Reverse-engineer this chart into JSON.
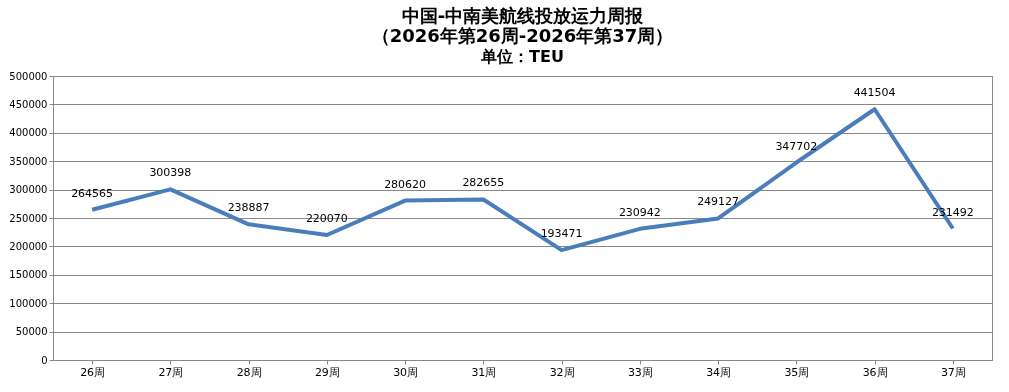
{
  "chart_data": {
    "type": "line",
    "title": [
      "中国-中南美航线投放运力周报",
      "（2026年第26周-2026年第37周）"
    ],
    "subtitle": "单位：TEU",
    "categories": [
      "26周",
      "27周",
      "28周",
      "29周",
      "30周",
      "31周",
      "32周",
      "33周",
      "34周",
      "35周",
      "36周",
      "37周"
    ],
    "series": [
      {
        "color": "#4a7ebb",
        "values": [
          264565,
          300398,
          238887,
          220070,
          280620,
          282655,
          193471,
          230942,
          249127,
          347702,
          441504,
          231492
        ]
      }
    ],
    "ylim": [
      0,
      500000
    ],
    "yticks": [
      0,
      50000,
      100000,
      150000,
      200000,
      250000,
      300000,
      350000,
      400000,
      450000,
      500000
    ],
    "grid": "y",
    "data_labels": true,
    "legend": false,
    "marker": "none",
    "line_style": "solid"
  }
}
